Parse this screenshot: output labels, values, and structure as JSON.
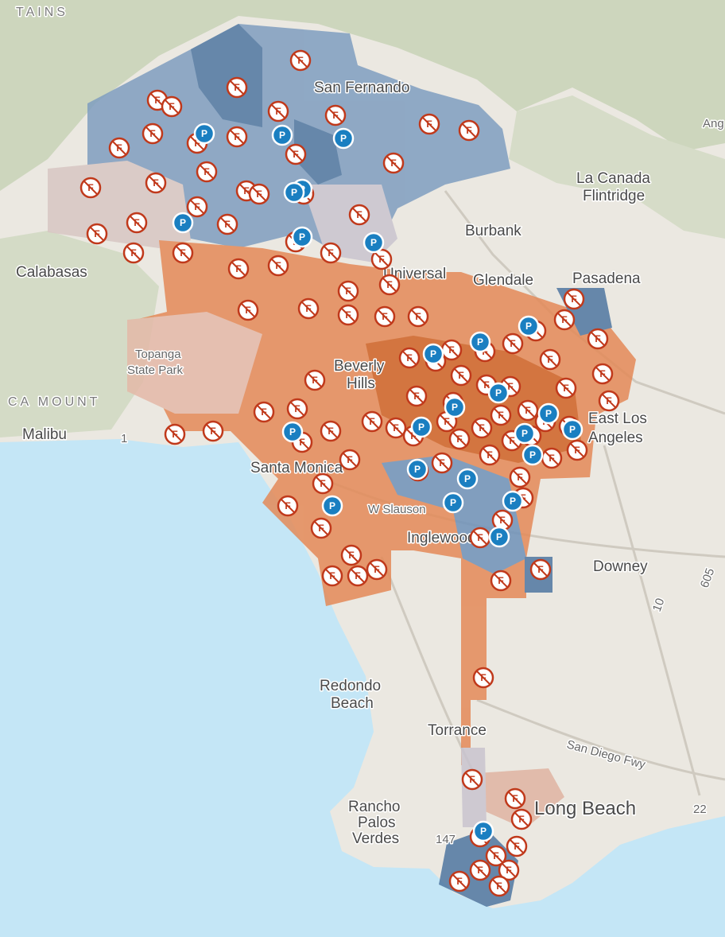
{
  "places": [
    [
      "TAINS"
    ],
    [
      "San Fernando"
    ],
    [
      "La Canada",
      "Flintridge"
    ],
    [
      "Burbank"
    ],
    [
      "Calabasas"
    ],
    [
      "Universal"
    ],
    [
      "Glendale"
    ],
    [
      "Pasadena"
    ],
    [
      "Topanga",
      "State Park"
    ],
    [
      "Beverly",
      "Hills"
    ],
    [
      "CA MOUNT"
    ],
    [
      "Malibu"
    ],
    [
      "Santa Monica"
    ],
    [
      "East Los",
      "Angeles"
    ],
    [
      "W Slauson"
    ],
    [
      "Inglewood"
    ],
    [
      "Downey"
    ],
    [
      "Redondo",
      "Beach"
    ],
    [
      "Torrance"
    ],
    [
      "San Diego Fwy"
    ],
    [
      "Rancho",
      "Palos",
      "Verdes"
    ],
    [
      "Long Beach"
    ],
    [
      "147"
    ],
    [
      "22"
    ],
    [
      "605"
    ],
    [
      "10"
    ],
    [
      "1"
    ],
    [
      "Ang"
    ]
  ],
  "icons": {
    "fire": "F",
    "parking": "P"
  }
}
